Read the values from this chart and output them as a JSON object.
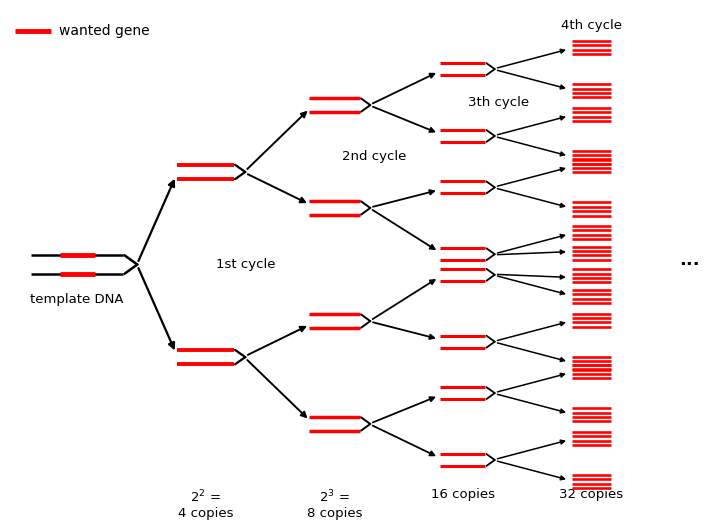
{
  "bg_color": "#ffffff",
  "dna_color": "#000000",
  "gene_color": "#ff0000",
  "arrow_color": "#000000",
  "text_color": "#000000",
  "legend_label": "wanted gene",
  "label_template": "template DNA",
  "label_1st": "1st cycle",
  "label_2nd": "2nd cycle",
  "label_3rd": "3th cycle",
  "label_4th": "4th cycle",
  "xlim": [
    0,
    14
  ],
  "ylim": [
    0,
    10
  ],
  "figw": 7.2,
  "figh": 5.3,
  "dpi": 100
}
